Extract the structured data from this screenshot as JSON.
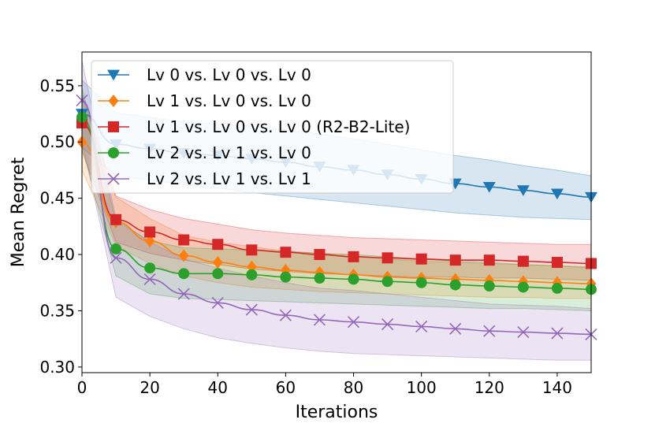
{
  "chart_data": {
    "type": "line",
    "title": "",
    "xlabel": "Iterations",
    "ylabel": "Mean Regret",
    "xlim": [
      0,
      150
    ],
    "ylim": [
      0.295,
      0.58
    ],
    "xticks": [
      0,
      20,
      40,
      60,
      80,
      100,
      120,
      140
    ],
    "yticks": [
      0.3,
      0.35,
      0.4,
      0.45,
      0.5,
      0.55
    ],
    "xtick_labels": [
      "0",
      "20",
      "40",
      "60",
      "80",
      "100",
      "120",
      "140"
    ],
    "ytick_labels": [
      "0.30",
      "0.35",
      "0.40",
      "0.45",
      "0.50",
      "0.55"
    ],
    "legend_position": "upper-right",
    "marker_x": [
      0,
      10,
      20,
      30,
      40,
      50,
      60,
      70,
      80,
      90,
      100,
      110,
      120,
      130,
      140,
      150
    ],
    "series": [
      {
        "name": "Lv 0 vs. Lv 0 vs. Lv 0",
        "color": "#1f77b4",
        "marker": "triangle-down",
        "values": [
          0.525,
          0.498,
          0.494,
          0.49,
          0.488,
          0.485,
          0.482,
          0.478,
          0.475,
          0.471,
          0.467,
          0.463,
          0.46,
          0.457,
          0.454,
          0.451
        ],
        "lower": [
          0.495,
          0.47,
          0.466,
          0.462,
          0.459,
          0.455,
          0.452,
          0.449,
          0.446,
          0.443,
          0.44,
          0.437,
          0.435,
          0.433,
          0.432,
          0.431
        ],
        "upper": [
          0.555,
          0.526,
          0.522,
          0.518,
          0.516,
          0.514,
          0.511,
          0.507,
          0.503,
          0.498,
          0.493,
          0.488,
          0.484,
          0.479,
          0.475,
          0.47
        ]
      },
      {
        "name": "Lv 1 vs. Lv 0 vs. Lv 0",
        "color": "#ff7f0e",
        "marker": "diamond",
        "values": [
          0.5,
          0.429,
          0.412,
          0.399,
          0.393,
          0.389,
          0.386,
          0.384,
          0.382,
          0.38,
          0.379,
          0.378,
          0.377,
          0.376,
          0.375,
          0.374
        ],
        "lower": [
          0.475,
          0.408,
          0.392,
          0.381,
          0.375,
          0.371,
          0.369,
          0.367,
          0.366,
          0.365,
          0.364,
          0.363,
          0.362,
          0.362,
          0.361,
          0.361
        ],
        "upper": [
          0.525,
          0.451,
          0.432,
          0.417,
          0.411,
          0.407,
          0.403,
          0.401,
          0.399,
          0.396,
          0.394,
          0.393,
          0.392,
          0.391,
          0.39,
          0.388
        ]
      },
      {
        "name": "Lv 1 vs. Lv 0 vs. Lv 0 (R2-B2-Lite)",
        "color": "#d62728",
        "marker": "square",
        "values": [
          0.517,
          0.431,
          0.42,
          0.413,
          0.409,
          0.404,
          0.402,
          0.4,
          0.398,
          0.397,
          0.396,
          0.395,
          0.395,
          0.394,
          0.393,
          0.392
        ],
        "lower": [
          0.492,
          0.411,
          0.401,
          0.395,
          0.391,
          0.387,
          0.385,
          0.383,
          0.382,
          0.381,
          0.38,
          0.38,
          0.379,
          0.379,
          0.378,
          0.377
        ],
        "upper": [
          0.542,
          0.452,
          0.44,
          0.432,
          0.427,
          0.422,
          0.419,
          0.417,
          0.415,
          0.414,
          0.413,
          0.412,
          0.411,
          0.41,
          0.409,
          0.409
        ]
      },
      {
        "name": "Lv 2 vs. Lv 1 vs. Lv 0",
        "color": "#2ca02c",
        "marker": "circle",
        "values": [
          0.522,
          0.405,
          0.388,
          0.383,
          0.383,
          0.382,
          0.38,
          0.379,
          0.378,
          0.376,
          0.375,
          0.373,
          0.372,
          0.371,
          0.37,
          0.369
        ],
        "lower": [
          0.496,
          0.381,
          0.365,
          0.361,
          0.36,
          0.359,
          0.358,
          0.357,
          0.356,
          0.355,
          0.354,
          0.353,
          0.352,
          0.352,
          0.351,
          0.35
        ],
        "upper": [
          0.548,
          0.43,
          0.412,
          0.406,
          0.405,
          0.404,
          0.403,
          0.401,
          0.4,
          0.398,
          0.396,
          0.394,
          0.393,
          0.391,
          0.39,
          0.389
        ]
      },
      {
        "name": "Lv 2 vs. Lv 1 vs. Lv 1",
        "color": "#9467bd",
        "marker": "x",
        "values": [
          0.537,
          0.397,
          0.378,
          0.365,
          0.357,
          0.351,
          0.346,
          0.342,
          0.34,
          0.338,
          0.336,
          0.334,
          0.332,
          0.331,
          0.33,
          0.329
        ],
        "lower": [
          0.502,
          0.362,
          0.345,
          0.334,
          0.326,
          0.321,
          0.317,
          0.314,
          0.312,
          0.311,
          0.31,
          0.309,
          0.308,
          0.307,
          0.306,
          0.306
        ],
        "upper": [
          0.572,
          0.432,
          0.411,
          0.396,
          0.388,
          0.381,
          0.375,
          0.37,
          0.368,
          0.365,
          0.362,
          0.359,
          0.356,
          0.355,
          0.354,
          0.352
        ]
      }
    ]
  }
}
